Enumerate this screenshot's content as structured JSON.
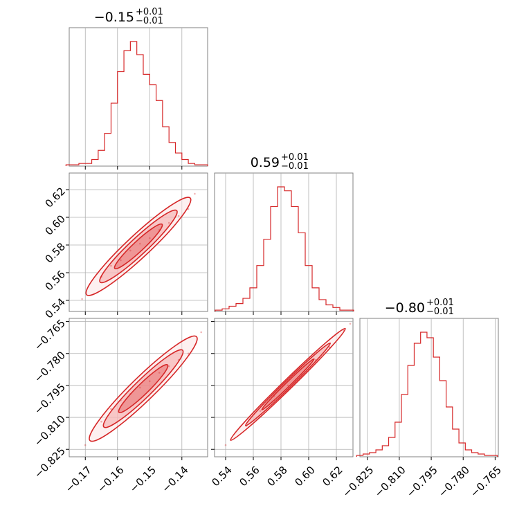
{
  "colors": {
    "series": "#d62728",
    "fill": "#f4a6a6",
    "grid": "#b0b0b0",
    "frame": "#808080"
  },
  "chart_data": {
    "type": "corner",
    "parameters": [
      {
        "median_label": "−0.15",
        "plus": "+0.01",
        "minus": "−0.01",
        "range": [
          -0.175,
          -0.132
        ],
        "ticks": [
          -0.17,
          -0.16,
          -0.15,
          -0.14
        ],
        "tick_labels": [
          "−0.17",
          "−0.16",
          "−0.15",
          "−0.14"
        ]
      },
      {
        "median_label": "0.59",
        "plus": "+0.01",
        "minus": "−0.01",
        "range": [
          0.532,
          0.632
        ],
        "ticks": [
          0.54,
          0.56,
          0.58,
          0.6,
          0.62
        ],
        "tick_labels": [
          "0.54",
          "0.56",
          "0.58",
          "0.60",
          "0.62"
        ]
      },
      {
        "median_label": "−0.80",
        "plus": "+0.01",
        "minus": "−0.01",
        "range": [
          -0.8285,
          -0.7635
        ],
        "ticks": [
          -0.825,
          -0.81,
          -0.795,
          -0.78,
          -0.765
        ],
        "tick_labels": [
          "−0.825",
          "−0.810",
          "−0.795",
          "−0.780",
          "−0.765"
        ]
      }
    ],
    "histograms": [
      {
        "x": [
          -0.175,
          -0.173,
          -0.171,
          -0.169,
          -0.167,
          -0.165,
          -0.163,
          -0.161,
          -0.159,
          -0.157,
          -0.155,
          -0.153,
          -0.151,
          -0.149,
          -0.147,
          -0.145,
          -0.143,
          -0.141,
          -0.139,
          -0.137,
          -0.135,
          -0.133
        ],
        "counts": [
          1,
          1,
          2,
          2,
          5,
          12,
          25,
          48,
          72,
          88,
          95,
          85,
          70,
          62,
          50,
          30,
          18,
          10,
          5,
          2,
          1,
          1
        ]
      },
      {
        "x": [
          0.535,
          0.54,
          0.545,
          0.55,
          0.555,
          0.56,
          0.565,
          0.57,
          0.575,
          0.58,
          0.585,
          0.59,
          0.595,
          0.6,
          0.605,
          0.61,
          0.615,
          0.62,
          0.625,
          0.63
        ],
        "counts": [
          1,
          2,
          4,
          6,
          10,
          18,
          35,
          55,
          80,
          95,
          92,
          80,
          60,
          35,
          18,
          9,
          5,
          3,
          1,
          1
        ]
      },
      {
        "x": [
          -0.8285,
          -0.8255,
          -0.8225,
          -0.8195,
          -0.8165,
          -0.8135,
          -0.8105,
          -0.8075,
          -0.8045,
          -0.8015,
          -0.7985,
          -0.7955,
          -0.7925,
          -0.7895,
          -0.7865,
          -0.7835,
          -0.7805,
          -0.7775,
          -0.7745,
          -0.7715,
          -0.7685,
          -0.7655
        ],
        "counts": [
          1,
          2,
          3,
          5,
          8,
          14,
          25,
          45,
          66,
          82,
          90,
          86,
          72,
          55,
          36,
          20,
          10,
          5,
          3,
          2,
          1,
          1
        ]
      }
    ],
    "pairs": [
      {
        "x_param": 0,
        "y_param": 1,
        "samples": [
          [
            -0.165,
            0.557
          ],
          [
            -0.162,
            0.565
          ],
          [
            -0.159,
            0.569
          ],
          [
            -0.156,
            0.576
          ],
          [
            -0.153,
            0.581
          ],
          [
            -0.15,
            0.585
          ],
          [
            -0.147,
            0.591
          ],
          [
            -0.144,
            0.596
          ],
          [
            -0.141,
            0.601
          ],
          [
            -0.138,
            0.606
          ],
          [
            -0.171,
            0.541
          ],
          [
            -0.136,
            0.617
          ]
        ]
      },
      {
        "x_param": 0,
        "y_param": 2,
        "samples": [
          [
            -0.165,
            -0.812
          ],
          [
            -0.162,
            -0.806
          ],
          [
            -0.159,
            -0.802
          ],
          [
            -0.156,
            -0.799
          ],
          [
            -0.153,
            -0.796
          ],
          [
            -0.15,
            -0.793
          ],
          [
            -0.147,
            -0.789
          ],
          [
            -0.144,
            -0.786
          ],
          [
            -0.141,
            -0.783
          ],
          [
            -0.138,
            -0.78
          ],
          [
            -0.17,
            -0.823
          ],
          [
            -0.134,
            -0.77
          ]
        ]
      },
      {
        "x_param": 1,
        "y_param": 2,
        "samples": [
          [
            0.54,
            -0.823
          ],
          [
            0.555,
            -0.814
          ],
          [
            0.565,
            -0.807
          ],
          [
            0.575,
            -0.8
          ],
          [
            0.585,
            -0.795
          ],
          [
            0.595,
            -0.79
          ],
          [
            0.605,
            -0.783
          ],
          [
            0.615,
            -0.777
          ],
          [
            0.625,
            -0.769
          ],
          [
            0.63,
            -0.766
          ]
        ]
      }
    ]
  }
}
